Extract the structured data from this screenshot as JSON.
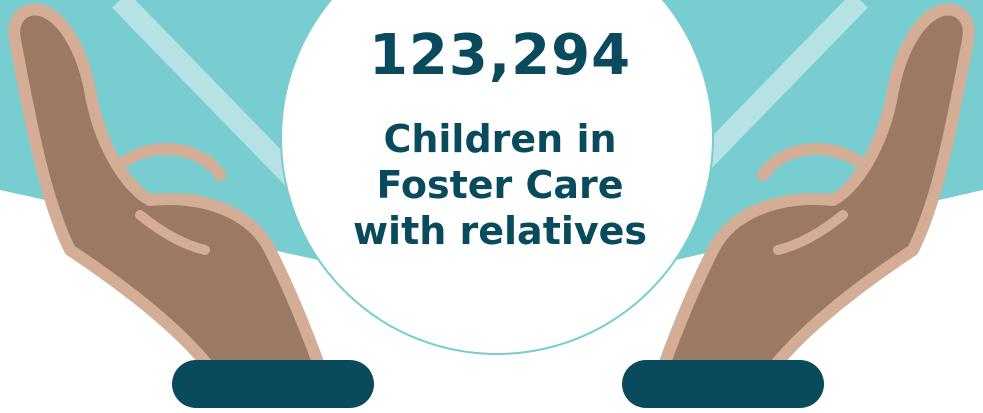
{
  "stat": {
    "number": "123,294",
    "caption_lines": [
      "Children in",
      "Foster Care",
      "with relatives"
    ]
  },
  "colors": {
    "teal": "#78cdd1",
    "teal_light": "#b6e2e5",
    "circle": "#ffffff",
    "navy": "#0a4a5d",
    "skin": "#9b7963",
    "skin_outline": "#d3ad96"
  },
  "icons": [
    "left-hand-icon",
    "right-hand-icon",
    "left-cuff-icon",
    "right-cuff-icon"
  ]
}
